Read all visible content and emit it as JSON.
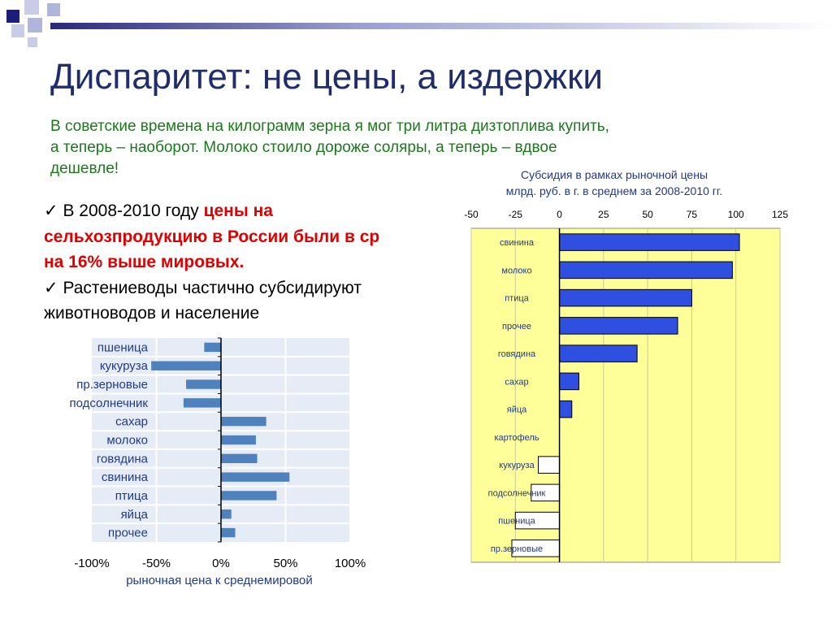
{
  "slide": {
    "title": "Диспаритет: не цены, а издержки",
    "intro": [
      "В советские времена на килограмм зерна я мог три литра дизтоплива купить,",
      "а теперь – наоборот. Молоко стоило дороже соляры, а теперь – вдвое",
      "дешевле!"
    ],
    "bullets": [
      {
        "check": "✓",
        "pre": " В 2008-2010 году ",
        "red": "цены на"
      },
      {
        "red": "сельхозпродукцию в России были в ср"
      },
      {
        "red": "на 16% выше мировых."
      },
      {
        "check": "✓",
        "pre": " Растениеводы частично субсидируют"
      },
      {
        "pre": "животноводов и население"
      }
    ]
  },
  "chart_data": [
    {
      "type": "bar",
      "orientation": "horizontal",
      "title": "",
      "xlabel": "рыночная цена к среднемировой",
      "categories": [
        "пшеница",
        "кукуруза",
        "пр.зерновые",
        "подсолнечник",
        "сахар",
        "молоко",
        "говядина",
        "свинина",
        "птица",
        "яйца",
        "прочее"
      ],
      "values": [
        -13,
        -54,
        -27,
        -29,
        35,
        27,
        28,
        53,
        43,
        8,
        11
      ],
      "tick_labels": [
        "-100%",
        "-50%",
        "0%",
        "50%",
        "100%"
      ],
      "xlim": [
        -100,
        100
      ],
      "bar_color": "#4f81bd",
      "panel_color": "#e6ecf5",
      "grid": true
    },
    {
      "type": "bar",
      "orientation": "horizontal",
      "title": "Субсидия в рамках рыночной цены",
      "subtitle": "млрд. руб. в г. в среднем за 2008-2010 гг.",
      "categories": [
        "свинина",
        "молоко",
        "птица",
        "прочее",
        "говядина",
        "сахар",
        "яйца",
        "картофель",
        "кукуруза",
        "подсолнечник",
        "пшеница",
        "пр.зерновые"
      ],
      "values": [
        102,
        98,
        75,
        67,
        44,
        11,
        7,
        0,
        -12,
        -16,
        -25,
        -27
      ],
      "xticks": [
        -50,
        -25,
        0,
        25,
        50,
        75,
        100,
        125
      ],
      "xlim": [
        -50,
        125
      ],
      "positive_color": "#2f4fe0",
      "negative_color": "#ffffff",
      "panel_color": "#ffff99",
      "grid": true
    }
  ]
}
